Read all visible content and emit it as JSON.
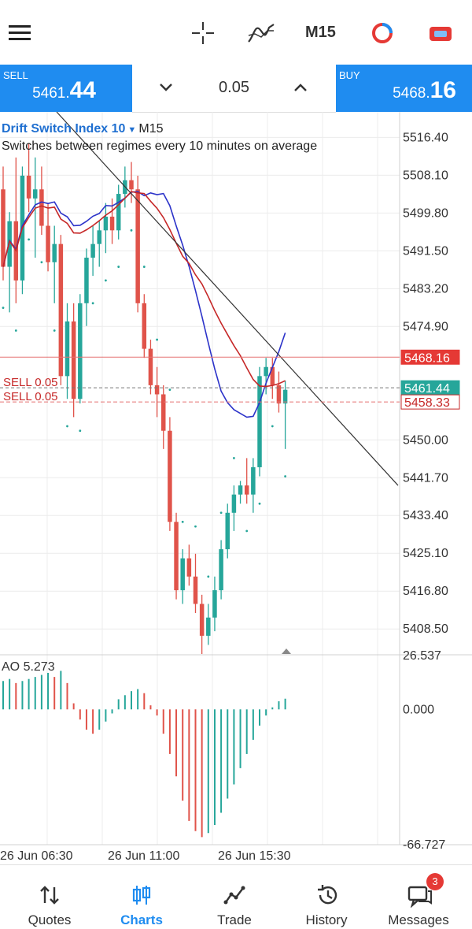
{
  "toolbar": {
    "menu_icon": "hamburger-icon",
    "crosshair_icon": "crosshair-icon",
    "indicators_icon": "indicators-icon",
    "timeframe": "M15",
    "trade_icon": "trade-circle-icon",
    "chart_type_icon": "chart-type-icon"
  },
  "trade_panel": {
    "sell_label": "SELL",
    "sell_price_main": "5461.",
    "sell_price_big": "44",
    "buy_label": "BUY",
    "buy_price_main": "5468.",
    "buy_price_big": "16",
    "lot": "0.05"
  },
  "chart_info": {
    "symbol": "Drift Switch Index 10",
    "timeframe": "M15",
    "description": "Switches between regimes every 10 minutes on average"
  },
  "chart_data": {
    "type": "candlestick",
    "price_axis_ticks": [
      "5516.40",
      "5508.10",
      "5499.80",
      "5491.50",
      "5483.20",
      "5474.90",
      "5450.00",
      "5441.70",
      "5433.40",
      "5425.10",
      "5416.80",
      "5408.50"
    ],
    "price_range": [
      5403,
      5522
    ],
    "time_labels": [
      "26 Jun 06:30",
      "26 Jun 11:00",
      "26 Jun 15:30"
    ],
    "price_tags": [
      {
        "label": "5468.16",
        "value": 5468.16,
        "style": "buy-outline"
      },
      {
        "label": "5461.44",
        "value": 5461.44,
        "style": "bid-filled"
      },
      {
        "label": "5458.33",
        "value": 5458.33,
        "style": "order-outline"
      }
    ],
    "order_labels": [
      "SELL 0.05",
      "SELL 0.05"
    ],
    "candles": [
      [
        5505,
        5510,
        5485,
        5488
      ],
      [
        5488,
        5500,
        5478,
        5498
      ],
      [
        5498,
        5512,
        5480,
        5485
      ],
      [
        5485,
        5510,
        5482,
        5508
      ],
      [
        5508,
        5515,
        5500,
        5503
      ],
      [
        5503,
        5512,
        5490,
        5505
      ],
      [
        5505,
        5510,
        5495,
        5497
      ],
      [
        5497,
        5502,
        5487,
        5489
      ],
      [
        5489,
        5497,
        5480,
        5493
      ],
      [
        5493,
        5495,
        5462,
        5464
      ],
      [
        5464,
        5480,
        5459,
        5476
      ],
      [
        5476,
        5480,
        5455,
        5459
      ],
      [
        5459,
        5482,
        5458,
        5480
      ],
      [
        5480,
        5492,
        5475,
        5490
      ],
      [
        5490,
        5497,
        5486,
        5493
      ],
      [
        5493,
        5498,
        5488,
        5496
      ],
      [
        5496,
        5502,
        5491,
        5499
      ],
      [
        5499,
        5503,
        5493,
        5496
      ],
      [
        5496,
        5506,
        5494,
        5504
      ],
      [
        5504,
        5510,
        5501,
        5507
      ],
      [
        5507,
        5511,
        5502,
        5505
      ],
      [
        5505,
        5508,
        5478,
        5480
      ],
      [
        5480,
        5482,
        5468,
        5470
      ],
      [
        5470,
        5472,
        5460,
        5462
      ],
      [
        5462,
        5466,
        5455,
        5460
      ],
      [
        5460,
        5462,
        5448,
        5452
      ],
      [
        5452,
        5455,
        5430,
        5432
      ],
      [
        5432,
        5434,
        5415,
        5417
      ],
      [
        5417,
        5426,
        5414,
        5424
      ],
      [
        5424,
        5427,
        5418,
        5420
      ],
      [
        5420,
        5425,
        5412,
        5414
      ],
      [
        5414,
        5416,
        5403,
        5407
      ],
      [
        5407,
        5414,
        5405,
        5411
      ],
      [
        5411,
        5420,
        5408,
        5417
      ],
      [
        5417,
        5428,
        5415,
        5426
      ],
      [
        5426,
        5436,
        5424,
        5434
      ],
      [
        5434,
        5440,
        5430,
        5438
      ],
      [
        5438,
        5441,
        5436,
        5440
      ],
      [
        5440,
        5446,
        5436,
        5438
      ],
      [
        5438,
        5446,
        5434,
        5444
      ],
      [
        5444,
        5466,
        5442,
        5464
      ],
      [
        5464,
        5468,
        5460,
        5466
      ],
      [
        5466,
        5468,
        5459,
        5462
      ],
      [
        5462,
        5465,
        5456,
        5458
      ],
      [
        5458,
        5463,
        5448,
        5461
      ]
    ],
    "ma_blue_last": 5473.5,
    "ma_red_last": 5463.0,
    "oscillator": {
      "name": "AO",
      "value_label": "5.273",
      "ticks": [
        "26.537",
        "0.000",
        "-66.727"
      ],
      "range": [
        -66.727,
        26.537
      ],
      "values": [
        14,
        15,
        13,
        14,
        15,
        16,
        17,
        18,
        16,
        19,
        13,
        3,
        -5,
        -10,
        -12,
        -10,
        -6,
        -2,
        5,
        7,
        9,
        10,
        8,
        2,
        -3,
        -12,
        -22,
        -33,
        -45,
        -55,
        -60,
        -63,
        -61,
        -57,
        -51,
        -44,
        -37,
        -29,
        -22,
        -15,
        -8,
        -3,
        1,
        4,
        5.273
      ]
    },
    "grid": true
  },
  "bottom_nav": {
    "items": [
      {
        "label": "Quotes",
        "icon": "quotes-icon"
      },
      {
        "label": "Charts",
        "icon": "charts-icon"
      },
      {
        "label": "Trade",
        "icon": "trade-icon"
      },
      {
        "label": "History",
        "icon": "history-icon"
      },
      {
        "label": "Messages",
        "icon": "messages-icon"
      }
    ],
    "messages_badge": "3"
  },
  "colors": {
    "accent": "#1f8cf0",
    "bull": "#26a69a",
    "bear": "#e0534a",
    "ma_blue": "#2c33c9",
    "ma_red": "#c62828"
  }
}
